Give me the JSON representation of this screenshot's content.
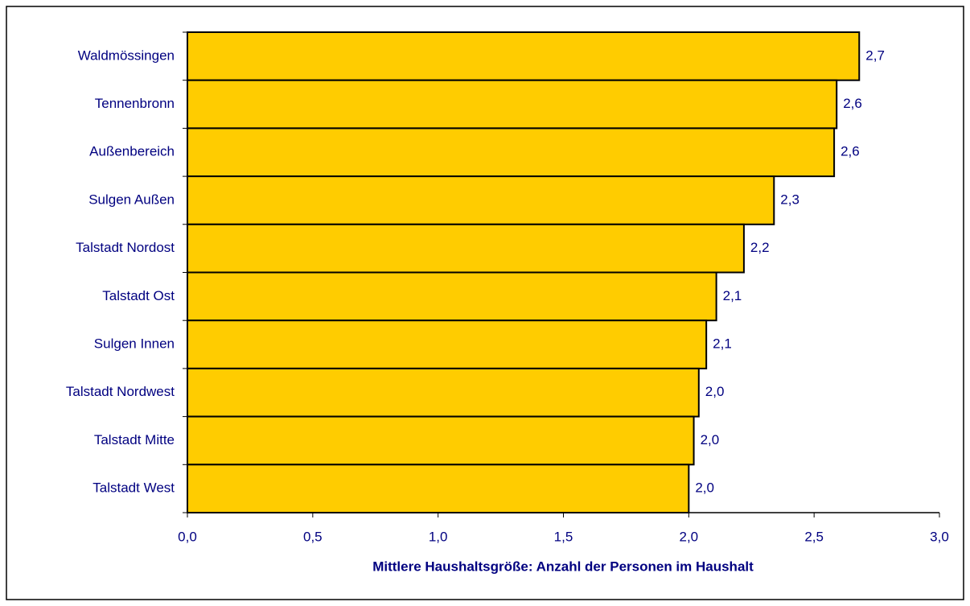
{
  "chart_data": {
    "type": "hbar",
    "x_label": "Mittlere Haushaltsgröße: Anzahl der Personen im Haushalt",
    "categories": [
      "Waldmössingen",
      "Tennenbronn",
      "Außenbereich",
      "Sulgen Außen",
      "Talstadt Nordost",
      "Talstadt Ost",
      "Sulgen Innen",
      "Talstadt Nordwest",
      "Talstadt Mitte",
      "Talstadt West"
    ],
    "values": [
      2.68,
      2.59,
      2.58,
      2.34,
      2.22,
      2.11,
      2.07,
      2.04,
      2.02,
      2.0
    ],
    "value_labels": [
      "2,7",
      "2,6",
      "2,6",
      "2,3",
      "2,2",
      "2,1",
      "2,1",
      "2,0",
      "2,0",
      "2,0"
    ],
    "color": "#FFCC00",
    "xlim": [
      0,
      3
    ],
    "xticks": [
      {
        "value": 0,
        "label": "0,0"
      },
      {
        "value": 0.5,
        "label": "0,5"
      },
      {
        "value": 1,
        "label": "1,0"
      },
      {
        "value": 1.5,
        "label": "1,5"
      },
      {
        "value": 2,
        "label": "2,0"
      },
      {
        "value": 2.5,
        "label": "2,5"
      },
      {
        "value": 3,
        "label": "3,0"
      }
    ],
    "grid": false
  }
}
